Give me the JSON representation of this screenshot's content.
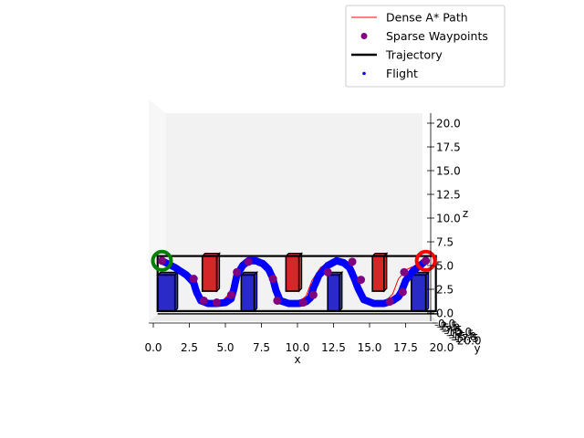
{
  "chart_data": {
    "type": "line",
    "projection": "3d",
    "xlabel": "x",
    "ylabel": "y",
    "zlabel": "z",
    "xlim": [
      0,
      20
    ],
    "zlim": [
      0,
      20
    ],
    "x_ticks": [
      "0.0",
      "2.5",
      "5.0",
      "7.5",
      "10.0",
      "12.5",
      "15.0",
      "17.5",
      "20.0"
    ],
    "z_ticks": [
      "0.0",
      "2.5",
      "5.0",
      "7.5",
      "10.0",
      "12.5",
      "15.0",
      "17.5",
      "20.0"
    ],
    "y_ticks": [
      "0.0",
      "2.5",
      "5.0",
      "7.5",
      "10.0",
      "12.5",
      "15.0",
      "17.5",
      "20.0"
    ],
    "legend": {
      "position": "upper-right",
      "entries": [
        {
          "label": "Dense A* Path",
          "kind": "line",
          "color": "#ff0000"
        },
        {
          "label": "Sparse Waypoints",
          "kind": "dot",
          "color": "#800080"
        },
        {
          "label": "Trajectory",
          "kind": "thick-line",
          "color": "#000000"
        },
        {
          "label": "Flight",
          "kind": "small-dot",
          "color": "#0000ff"
        }
      ]
    },
    "colors": {
      "path": "#ff0000",
      "waypoint": "#800080",
      "trajectory": "#000000",
      "flight": "#0000ff",
      "start": "#008000",
      "goal": "#ff0000",
      "obstacle_top": "#d62728",
      "obstacle_bottom": "#2a2ac8"
    },
    "start": {
      "x": 0.6,
      "z": 5.5
    },
    "goal": {
      "x": 18.9,
      "z": 5.5
    },
    "obstacles": [
      {
        "x0": 0.3,
        "x1": 1.5,
        "z0": 0.2,
        "z1": 4.0,
        "type": "bottom"
      },
      {
        "x0": 3.4,
        "x1": 4.4,
        "z0": 2.3,
        "z1": 6.0,
        "type": "top"
      },
      {
        "x0": 6.1,
        "x1": 7.0,
        "z0": 0.2,
        "z1": 4.0,
        "type": "bottom"
      },
      {
        "x0": 9.2,
        "x1": 10.1,
        "z0": 2.3,
        "z1": 6.0,
        "type": "top"
      },
      {
        "x0": 12.1,
        "x1": 12.9,
        "z0": 0.2,
        "z1": 4.0,
        "type": "bottom"
      },
      {
        "x0": 15.2,
        "x1": 16.0,
        "z0": 2.3,
        "z1": 6.0,
        "type": "top"
      },
      {
        "x0": 17.9,
        "x1": 18.9,
        "z0": 0.2,
        "z1": 4.0,
        "type": "bottom"
      }
    ],
    "frame": {
      "x0": 0.3,
      "x1": 19.6,
      "z0": 0.2,
      "z1": 6.0
    },
    "dense_path": {
      "x": [
        0.6,
        1.8,
        2.6,
        2.9,
        3.3,
        4.2,
        4.8,
        5.4,
        5.8,
        6.3,
        6.8,
        7.4,
        7.9,
        8.2,
        8.6,
        9.3,
        10.0,
        10.6,
        11.0,
        11.6,
        12.3,
        13.0,
        13.6,
        13.9,
        14.4,
        15.3,
        16.0,
        16.6,
        17.0,
        17.6,
        18.3,
        18.9
      ],
      "z": [
        5.5,
        4.6,
        3.8,
        2.6,
        1.4,
        1.0,
        1.3,
        2.2,
        3.8,
        5.2,
        5.5,
        5.2,
        4.4,
        3.0,
        1.4,
        1.0,
        1.0,
        1.8,
        3.4,
        4.8,
        5.5,
        5.2,
        4.4,
        3.0,
        1.5,
        1.0,
        1.1,
        2.0,
        3.6,
        4.6,
        5.1,
        5.5
      ]
    },
    "waypoints": {
      "x": [
        0.6,
        2.8,
        3.5,
        4.4,
        5.4,
        5.8,
        6.6,
        8.3,
        8.6,
        10.4,
        11.1,
        12.1,
        13.8,
        14.4,
        16.4,
        17.3,
        17.4,
        18.9
      ],
      "z": [
        5.5,
        3.6,
        1.3,
        1.1,
        1.9,
        4.3,
        5.4,
        3.6,
        1.3,
        1.1,
        1.9,
        4.3,
        5.4,
        3.5,
        1.2,
        2.2,
        4.3,
        5.5
      ]
    },
    "trajectory": {
      "x": [
        0.6,
        1.5,
        2.3,
        2.8,
        3.0,
        3.3,
        3.8,
        4.4,
        5.0,
        5.4,
        5.6,
        5.8,
        6.2,
        6.6,
        7.1,
        7.6,
        8.0,
        8.3,
        8.5,
        8.8,
        9.4,
        10.1,
        10.6,
        10.9,
        11.1,
        11.5,
        12.1,
        12.7,
        13.2,
        13.6,
        13.9,
        14.2,
        14.6,
        15.3,
        16.0,
        16.6,
        17.0,
        17.2,
        17.5,
        18.0,
        18.5,
        18.9
      ],
      "z": [
        5.5,
        4.8,
        4.0,
        3.2,
        2.2,
        1.3,
        1.0,
        1.0,
        1.1,
        1.5,
        2.6,
        4.0,
        5.0,
        5.5,
        5.5,
        5.2,
        4.6,
        3.6,
        2.4,
        1.3,
        1.0,
        1.0,
        1.2,
        1.6,
        2.6,
        4.0,
        5.0,
        5.5,
        5.3,
        4.8,
        3.8,
        2.6,
        1.4,
        1.0,
        1.0,
        1.3,
        1.7,
        2.2,
        3.4,
        4.4,
        5.0,
        5.5
      ]
    }
  }
}
